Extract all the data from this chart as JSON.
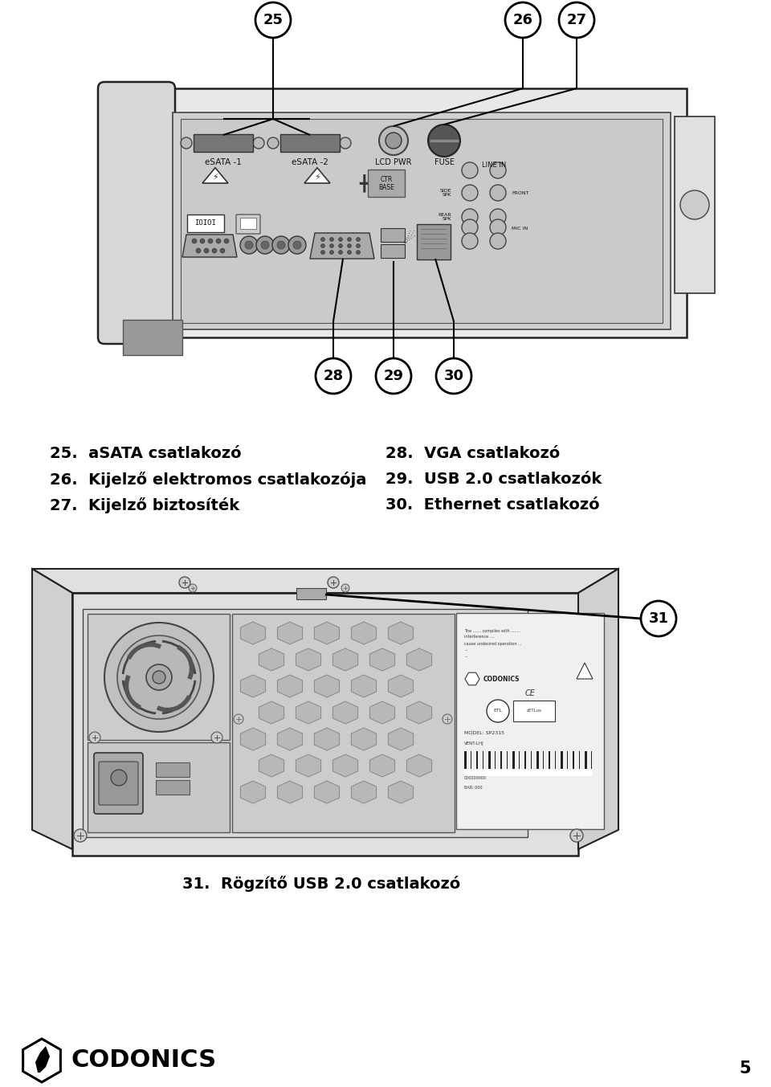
{
  "bg_color": "#ffffff",
  "page_number": "5",
  "labels_left": [
    "25.  aSATA csatlakozó",
    "26.  Kijelző elektromos csatlakozója",
    "27.  Kijelző biztosíték"
  ],
  "labels_right": [
    "28.  VGA csatlakozó",
    "29.  USB 2.0 csatlakozók",
    "30.  Ethernet csatlakozó"
  ],
  "label_31": "31.  Rögzítő USB 2.0 csatlakozó",
  "codonics_text": "CODONICS",
  "font_size_labels": 14,
  "font_size_callout": 12,
  "font_size_page": 15,
  "text_color": "#000000"
}
